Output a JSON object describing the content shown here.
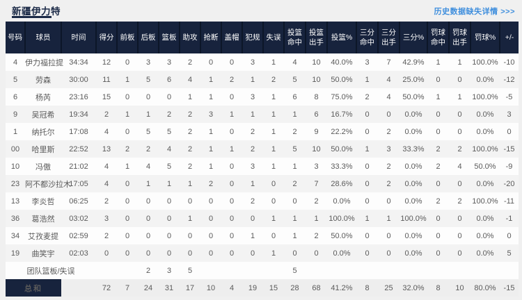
{
  "page": {
    "title": "新疆伊力特",
    "history_link": "历史数据缺失详情 >>>"
  },
  "colors": {
    "header_navy": "#17233d",
    "title_navy": "#1b2a47",
    "link_blue": "#3e8edd",
    "stripe_gray": "#f3f3f3",
    "page_bg": "#f0f0f0"
  },
  "table": {
    "columns": [
      "号码",
      "球员",
      "时间",
      "得分",
      "前板",
      "后板",
      "篮板",
      "助攻",
      "抢断",
      "盖帽",
      "犯规",
      "失误",
      "投篮\n命中",
      "投篮\n出手",
      "投篮%",
      "三分\n命中",
      "三分\n出手",
      "三分%",
      "罚球\n命中",
      "罚球\n出手",
      "罚球%",
      "+/-"
    ],
    "players": [
      [
        "4",
        "伊力福拉提",
        "34:34",
        "12",
        "0",
        "3",
        "3",
        "2",
        "0",
        "0",
        "3",
        "1",
        "4",
        "10",
        "40.0%",
        "3",
        "7",
        "42.9%",
        "1",
        "1",
        "100.0%",
        "-10"
      ],
      [
        "5",
        "劳森",
        "30:00",
        "11",
        "1",
        "5",
        "6",
        "4",
        "1",
        "2",
        "1",
        "2",
        "5",
        "10",
        "50.0%",
        "1",
        "4",
        "25.0%",
        "0",
        "0",
        "0.0%",
        "-12"
      ],
      [
        "6",
        "杨芮",
        "23:16",
        "15",
        "0",
        "0",
        "0",
        "1",
        "1",
        "0",
        "3",
        "1",
        "6",
        "8",
        "75.0%",
        "2",
        "4",
        "50.0%",
        "1",
        "1",
        "100.0%",
        "-5"
      ],
      [
        "9",
        "吴冠希",
        "19:34",
        "2",
        "1",
        "1",
        "2",
        "2",
        "3",
        "1",
        "1",
        "1",
        "1",
        "6",
        "16.7%",
        "0",
        "0",
        "0.0%",
        "0",
        "0",
        "0.0%",
        "3"
      ],
      [
        "1",
        "纳托尔",
        "17:08",
        "4",
        "0",
        "5",
        "5",
        "2",
        "1",
        "0",
        "2",
        "1",
        "2",
        "9",
        "22.2%",
        "0",
        "2",
        "0.0%",
        "0",
        "0",
        "0.0%",
        "0"
      ],
      [
        "00",
        "哈里斯",
        "22:52",
        "13",
        "2",
        "2",
        "4",
        "2",
        "1",
        "1",
        "2",
        "1",
        "5",
        "10",
        "50.0%",
        "1",
        "3",
        "33.3%",
        "2",
        "2",
        "100.0%",
        "-15"
      ],
      [
        "10",
        "冯傲",
        "21:02",
        "4",
        "1",
        "4",
        "5",
        "2",
        "1",
        "0",
        "3",
        "1",
        "1",
        "3",
        "33.3%",
        "0",
        "2",
        "0.0%",
        "2",
        "4",
        "50.0%",
        "-9"
      ],
      [
        "23",
        "阿不都沙拉木",
        "17:05",
        "4",
        "0",
        "1",
        "1",
        "1",
        "2",
        "0",
        "1",
        "0",
        "2",
        "7",
        "28.6%",
        "0",
        "2",
        "0.0%",
        "0",
        "0",
        "0.0%",
        "-20"
      ],
      [
        "13",
        "李炎哲",
        "06:25",
        "2",
        "0",
        "0",
        "0",
        "0",
        "0",
        "0",
        "2",
        "0",
        "0",
        "2",
        "0.0%",
        "0",
        "0",
        "0.0%",
        "2",
        "2",
        "100.0%",
        "-11"
      ],
      [
        "36",
        "葛浩然",
        "03:02",
        "3",
        "0",
        "0",
        "0",
        "1",
        "0",
        "0",
        "0",
        "1",
        "1",
        "1",
        "100.0%",
        "1",
        "1",
        "100.0%",
        "0",
        "0",
        "0.0%",
        "-1"
      ],
      [
        "34",
        "艾孜麦提",
        "02:59",
        "2",
        "0",
        "0",
        "0",
        "0",
        "0",
        "0",
        "1",
        "0",
        "1",
        "2",
        "50.0%",
        "0",
        "0",
        "0.0%",
        "0",
        "0",
        "0.0%",
        "0"
      ],
      [
        "19",
        "曲笑宇",
        "02:03",
        "0",
        "0",
        "0",
        "0",
        "0",
        "0",
        "0",
        "0",
        "1",
        "0",
        "0",
        "0.0%",
        "0",
        "0",
        "0.0%",
        "0",
        "0",
        "0.0%",
        "5"
      ]
    ],
    "team_row": {
      "label": "团队篮板/失误",
      "values": [
        "",
        "",
        "2",
        "3",
        "5",
        "",
        "",
        "",
        "",
        "5",
        "",
        "",
        "",
        "",
        "",
        "",
        "",
        "",
        "",
        ""
      ]
    },
    "total_row": {
      "label": "总和",
      "values": [
        "",
        "72",
        "7",
        "24",
        "31",
        "17",
        "10",
        "4",
        "19",
        "15",
        "28",
        "68",
        "41.2%",
        "8",
        "25",
        "32.0%",
        "8",
        "10",
        "80.0%",
        "-15"
      ]
    }
  }
}
